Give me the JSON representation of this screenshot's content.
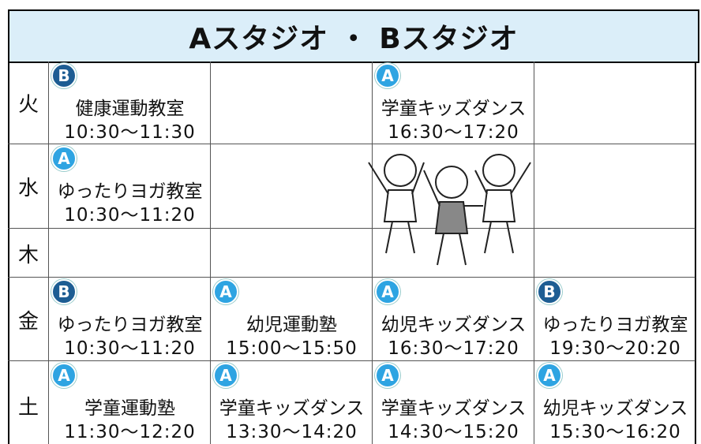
{
  "header": {
    "title": "Aスタジオ ・ Bスタジオ"
  },
  "table": {
    "rows": [
      {
        "day": "火",
        "cells": [
          {
            "studio": "B",
            "class": "健康運動教室",
            "time": "10:30～11:30"
          },
          null,
          {
            "studio": "A",
            "class": "学童キッズダンス",
            "time": "16:30～17:20"
          },
          null
        ]
      },
      {
        "day": "水",
        "cells": [
          {
            "studio": "A",
            "class": "ゆったりヨガ教室",
            "time": "10:30～11:20"
          },
          null,
          null,
          null
        ]
      },
      {
        "day": "木",
        "cells": [
          null,
          null,
          null,
          null
        ]
      },
      {
        "day": "金",
        "cells": [
          {
            "studio": "B",
            "class": "ゆったりヨガ教室",
            "time": "10:30～11:20"
          },
          {
            "studio": "A",
            "class": "幼児運動塾",
            "time": "15:00～15:50"
          },
          {
            "studio": "A",
            "class": "幼児キッズダンス",
            "time": "16:30～17:20"
          },
          {
            "studio": "B",
            "class": "ゆったりヨガ教室",
            "time": "19:30～20:20"
          }
        ]
      },
      {
        "day": "土",
        "cells": [
          {
            "studio": "A",
            "class": "学童運動塾",
            "time": "11:30～12:20"
          },
          {
            "studio": "A",
            "class": "学童キッズダンス",
            "time": "13:30～14:20"
          },
          {
            "studio": "A",
            "class": "学童キッズダンス",
            "time": "14:30～15:20"
          },
          {
            "studio": "A",
            "class": "幼児キッズダンス",
            "time": "15:30～16:20"
          }
        ]
      }
    ]
  }
}
